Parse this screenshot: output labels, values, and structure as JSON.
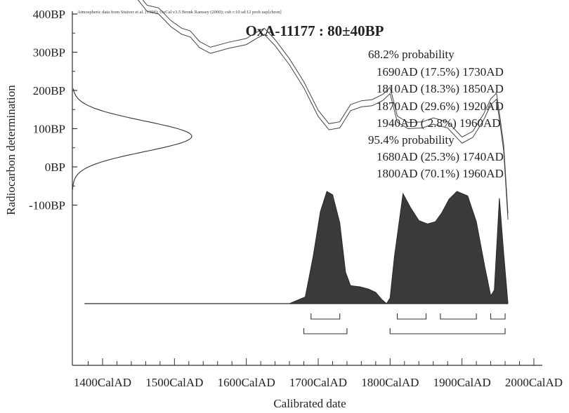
{
  "chart_data": {
    "type": "area",
    "header_note": "Atmospheric data from Stuiver et al. (1998); OxCal v3.5 Bronk Ramsey (2000); cub r:10 sd:12 prob usp[chron]",
    "title": "OxA-11177 : 80±40BP",
    "xlabel": "Calibrated date",
    "ylabel": "Radiocarbon determination",
    "xlim": [
      1300,
      2000
    ],
    "ylim": [
      -350,
      500
    ],
    "x_ticks": [
      {
        "value": 1400,
        "label": "1400CalAD"
      },
      {
        "value": 1500,
        "label": "1500CalAD"
      },
      {
        "value": 1600,
        "label": "1600CalAD"
      },
      {
        "value": 1700,
        "label": "1700CalAD"
      },
      {
        "value": 1800,
        "label": "1800CalAD"
      },
      {
        "value": 1900,
        "label": "1900CalAD"
      },
      {
        "value": 2000,
        "label": "2000CalAD"
      }
    ],
    "y_ticks": [
      {
        "value": 500,
        "label": "500BP"
      },
      {
        "value": 400,
        "label": "400BP"
      },
      {
        "value": 300,
        "label": "300BP"
      },
      {
        "value": 200,
        "label": "200BP"
      },
      {
        "value": 100,
        "label": "100BP"
      },
      {
        "value": 0,
        "label": "0BP"
      },
      {
        "value": -100,
        "label": "-100BP"
      }
    ],
    "probability_text": [
      "68.2% probability",
      "1690AD (17.5%) 1730AD",
      "1810AD (18.3%) 1850AD",
      "1870AD (29.6%) 1920AD",
      "1940AD ( 2.8%) 1960AD",
      "95.4% probability",
      "1680AD (25.3%) 1740AD",
      "1800AD (70.1%) 1960AD"
    ],
    "radiocarbon_measurement": {
      "mean_bp": 80,
      "sigma_bp": 40
    },
    "calibration_curve": [
      [
        1432,
        500
      ],
      [
        1445,
        455
      ],
      [
        1462,
        415
      ],
      [
        1478,
        408
      ],
      [
        1495,
        375
      ],
      [
        1510,
        355
      ],
      [
        1522,
        348
      ],
      [
        1535,
        320
      ],
      [
        1550,
        305
      ],
      [
        1575,
        318
      ],
      [
        1600,
        328
      ],
      [
        1615,
        345
      ],
      [
        1625,
        355
      ],
      [
        1640,
        325
      ],
      [
        1660,
        275
      ],
      [
        1680,
        215
      ],
      [
        1700,
        140
      ],
      [
        1715,
        105
      ],
      [
        1730,
        110
      ],
      [
        1745,
        155
      ],
      [
        1760,
        165
      ],
      [
        1775,
        168
      ],
      [
        1790,
        182
      ],
      [
        1800,
        200
      ],
      [
        1810,
        125
      ],
      [
        1825,
        108
      ],
      [
        1845,
        110
      ],
      [
        1860,
        120
      ],
      [
        1880,
        110
      ],
      [
        1900,
        70
      ],
      [
        1915,
        85
      ],
      [
        1930,
        130
      ],
      [
        1940,
        170
      ],
      [
        1948,
        185
      ],
      [
        1953,
        120
      ],
      [
        1958,
        50
      ],
      [
        1964,
        -130
      ]
    ],
    "curve_band_width_bp": 8,
    "calibrated_distribution": [
      [
        1375,
        0
      ],
      [
        1600,
        0
      ],
      [
        1660,
        0
      ],
      [
        1682,
        0.06
      ],
      [
        1693,
        0.42
      ],
      [
        1703,
        0.82
      ],
      [
        1712,
        1.0
      ],
      [
        1720,
        0.97
      ],
      [
        1730,
        0.72
      ],
      [
        1738,
        0.28
      ],
      [
        1745,
        0.16
      ],
      [
        1758,
        0.15
      ],
      [
        1770,
        0.13
      ],
      [
        1780,
        0.1
      ],
      [
        1788,
        0.04
      ],
      [
        1795,
        0.0
      ],
      [
        1800,
        0.05
      ],
      [
        1806,
        0.42
      ],
      [
        1818,
        0.98
      ],
      [
        1828,
        0.86
      ],
      [
        1840,
        0.74
      ],
      [
        1852,
        0.71
      ],
      [
        1863,
        0.73
      ],
      [
        1872,
        0.81
      ],
      [
        1882,
        0.93
      ],
      [
        1893,
        1.0
      ],
      [
        1908,
        0.96
      ],
      [
        1920,
        0.73
      ],
      [
        1932,
        0.32
      ],
      [
        1940,
        0.07
      ],
      [
        1945,
        0.12
      ],
      [
        1952,
        0.94
      ],
      [
        1958,
        0.45
      ],
      [
        1964,
        0.0
      ]
    ],
    "ranges_68": [
      [
        1690,
        1730
      ],
      [
        1810,
        1850
      ],
      [
        1870,
        1920
      ],
      [
        1940,
        1960
      ]
    ],
    "ranges_95": [
      [
        1680,
        1740
      ],
      [
        1800,
        1960
      ]
    ]
  }
}
